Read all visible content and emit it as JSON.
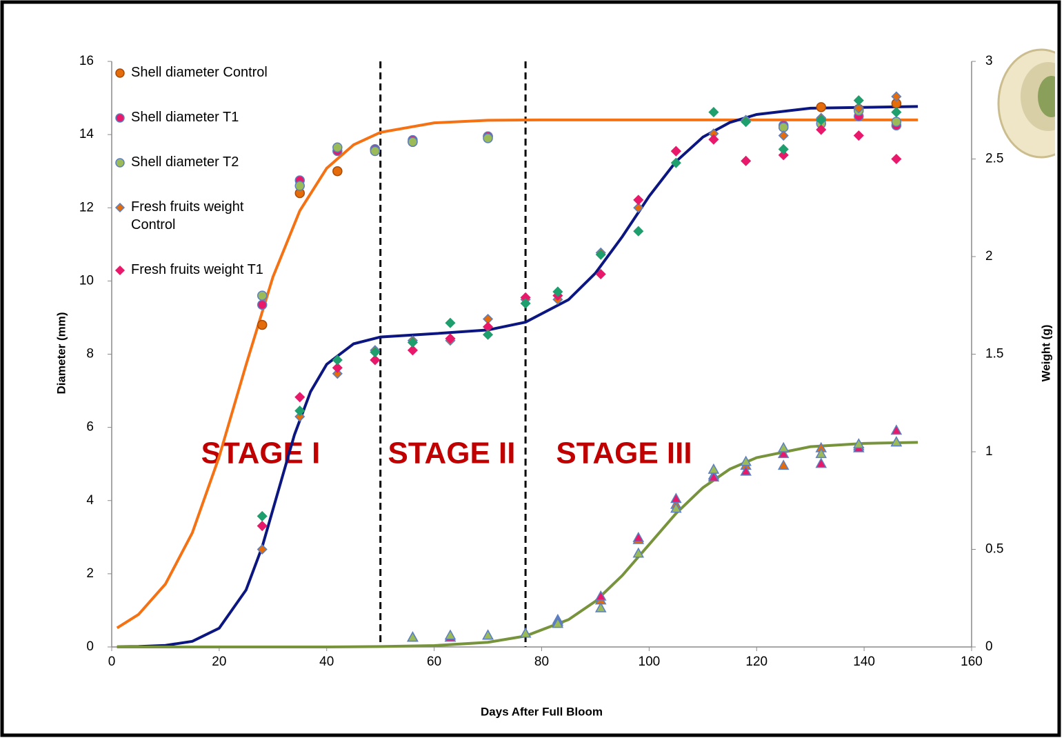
{
  "chart_data": {
    "type": "scatter",
    "xlabel": "Days After Full Bloom",
    "ylabel": "Diameter (mm)",
    "y2label": "Weight (g)",
    "xlim": [
      0,
      160
    ],
    "xticks": [
      0,
      20,
      40,
      60,
      80,
      100,
      120,
      140,
      160
    ],
    "ylim": [
      0,
      16
    ],
    "yticks": [
      0,
      2,
      4,
      6,
      8,
      10,
      12,
      14,
      16
    ],
    "y2lim": [
      0,
      3
    ],
    "y2ticks": [
      0,
      0.5,
      1,
      1.5,
      2,
      2.5,
      3
    ],
    "vlines": [
      50,
      77
    ],
    "annotations": [
      "STAGE I",
      "STAGE II",
      "STAGE III"
    ],
    "annotation_color": "#c00000",
    "grid": false,
    "legend": "upper left",
    "series": [
      {
        "name": "Shell diameter Control",
        "kind": "marker",
        "marker": "circle",
        "color": "#e46c0a",
        "edge": "#a84a08",
        "axis": "y",
        "x": [
          28,
          35,
          42,
          49,
          56,
          70,
          125,
          132,
          139,
          146
        ],
        "values": [
          8.8,
          12.4,
          13.0,
          13.6,
          13.8,
          13.95,
          14.2,
          14.75,
          14.7,
          14.85
        ]
      },
      {
        "name": "Shell diameter T1",
        "kind": "marker",
        "marker": "circle",
        "color": "#e8196b",
        "edge": "#5b7fc0",
        "axis": "y",
        "x": [
          28,
          35,
          42,
          49,
          56,
          70,
          125,
          132,
          139,
          146
        ],
        "values": [
          9.35,
          12.75,
          13.55,
          13.6,
          13.85,
          13.95,
          14.25,
          14.4,
          14.5,
          14.25
        ]
      },
      {
        "name": "Shell diameter T2",
        "kind": "marker",
        "marker": "circle",
        "color": "#9bbb59",
        "edge": "#5b7fc0",
        "axis": "y",
        "x": [
          28,
          35,
          42,
          49,
          56,
          70,
          125,
          132,
          139,
          146
        ],
        "values": [
          9.6,
          12.6,
          13.65,
          13.55,
          13.8,
          13.9,
          14.2,
          14.3,
          14.65,
          14.35
        ]
      },
      {
        "name": "Fresh fruits weight Control",
        "kind": "marker",
        "marker": "diamond",
        "color": "#e46c0a",
        "edge": "#5b7fc0",
        "axis": "y2",
        "x": [
          28,
          35,
          42,
          49,
          56,
          63,
          70,
          77,
          83,
          91,
          98,
          105,
          112,
          118,
          125,
          132,
          139,
          146
        ],
        "values": [
          0.5,
          1.18,
          1.4,
          1.52,
          1.57,
          1.57,
          1.68,
          1.78,
          1.78,
          2.02,
          2.25,
          2.54,
          2.63,
          2.7,
          2.62,
          2.71,
          2.76,
          2.82
        ]
      },
      {
        "name": "Fresh fruits weight T1",
        "kind": "marker",
        "marker": "diamond",
        "color": "#e8196b",
        "edge": "#e8196b",
        "axis": "y2",
        "x": [
          28,
          35,
          42,
          49,
          56,
          63,
          70,
          77,
          83,
          91,
          98,
          105,
          112,
          118,
          125,
          132,
          139,
          146
        ],
        "values": [
          0.62,
          1.28,
          1.43,
          1.47,
          1.52,
          1.58,
          1.64,
          1.79,
          1.8,
          1.91,
          2.29,
          2.54,
          2.6,
          2.49,
          2.52,
          2.65,
          2.62,
          2.5
        ]
      },
      {
        "kind": "marker",
        "marker": "diamond",
        "color": "#1f9e6e",
        "edge": "#1f9e6e",
        "axis": "y2",
        "x": [
          28,
          35,
          42,
          49,
          56,
          63,
          70,
          77,
          83,
          91,
          98,
          105,
          112,
          118,
          125,
          132,
          139,
          146
        ],
        "values": [
          0.67,
          1.21,
          1.47,
          1.51,
          1.56,
          1.66,
          1.6,
          1.76,
          1.82,
          2.01,
          2.13,
          2.48,
          2.74,
          2.69,
          2.55,
          2.7,
          2.8,
          2.74
        ]
      },
      {
        "kind": "marker",
        "marker": "triangle",
        "color": "#e46c0a",
        "edge": "#5b7fc0",
        "axis": "y2",
        "x": [
          56,
          63,
          70,
          77,
          83,
          91,
          98,
          105,
          112,
          118,
          125,
          132,
          139,
          146
        ],
        "values": [
          0.05,
          0.05,
          0.06,
          0.07,
          0.14,
          0.24,
          0.55,
          0.73,
          0.88,
          0.93,
          0.93,
          1.02,
          1.03,
          1.05
        ]
      },
      {
        "kind": "marker",
        "marker": "triangle",
        "color": "#e8196b",
        "edge": "#5b7fc0",
        "axis": "y2",
        "x": [
          56,
          63,
          70,
          77,
          83,
          91,
          98,
          105,
          112,
          118,
          125,
          132,
          139,
          146
        ],
        "values": [
          0.05,
          0.05,
          0.06,
          0.07,
          0.13,
          0.26,
          0.56,
          0.76,
          0.87,
          0.9,
          0.99,
          0.94,
          1.02,
          1.11
        ]
      },
      {
        "kind": "marker",
        "marker": "triangle",
        "color": "#9bbb59",
        "edge": "#5b7fc0",
        "axis": "y2",
        "x": [
          56,
          63,
          70,
          77,
          83,
          91,
          98,
          105,
          112,
          118,
          125,
          132,
          139,
          146
        ],
        "values": [
          0.05,
          0.06,
          0.06,
          0.07,
          0.12,
          0.2,
          0.48,
          0.71,
          0.91,
          0.95,
          1.02,
          0.99,
          1.04,
          1.05
        ]
      },
      {
        "kind": "line",
        "color": "#f57214",
        "axis": "y",
        "x": [
          1,
          5,
          10,
          15,
          20,
          25,
          30,
          35,
          40,
          45,
          50,
          60,
          70,
          80,
          100,
          120,
          150
        ],
        "values": [
          0.52,
          0.89,
          1.72,
          3.12,
          5.2,
          7.71,
          10.11,
          11.92,
          13.08,
          13.72,
          14.06,
          14.32,
          14.39,
          14.4,
          14.4,
          14.4,
          14.4
        ]
      },
      {
        "kind": "line",
        "color": "#0c1680",
        "axis": "y2",
        "x": [
          1,
          5,
          10,
          15,
          20,
          25,
          28,
          31,
          34,
          37,
          40,
          45,
          50,
          60,
          70,
          77,
          85,
          90,
          95,
          100,
          105,
          110,
          115,
          120,
          130,
          150
        ],
        "values": [
          0.001,
          0.002,
          0.008,
          0.029,
          0.096,
          0.292,
          0.513,
          0.8,
          1.087,
          1.308,
          1.448,
          1.553,
          1.588,
          1.605,
          1.624,
          1.664,
          1.779,
          1.915,
          2.102,
          2.309,
          2.487,
          2.612,
          2.687,
          2.728,
          2.76,
          2.769
        ]
      },
      {
        "kind": "line",
        "color": "#77933c",
        "axis": "y2",
        "x": [
          1,
          40,
          50,
          60,
          70,
          77,
          85,
          90,
          95,
          100,
          105,
          110,
          115,
          120,
          130,
          140,
          150
        ],
        "values": [
          0,
          0,
          0.002,
          0.007,
          0.024,
          0.056,
          0.14,
          0.234,
          0.366,
          0.525,
          0.684,
          0.816,
          0.911,
          0.97,
          1.026,
          1.043,
          1.048
        ]
      }
    ]
  }
}
